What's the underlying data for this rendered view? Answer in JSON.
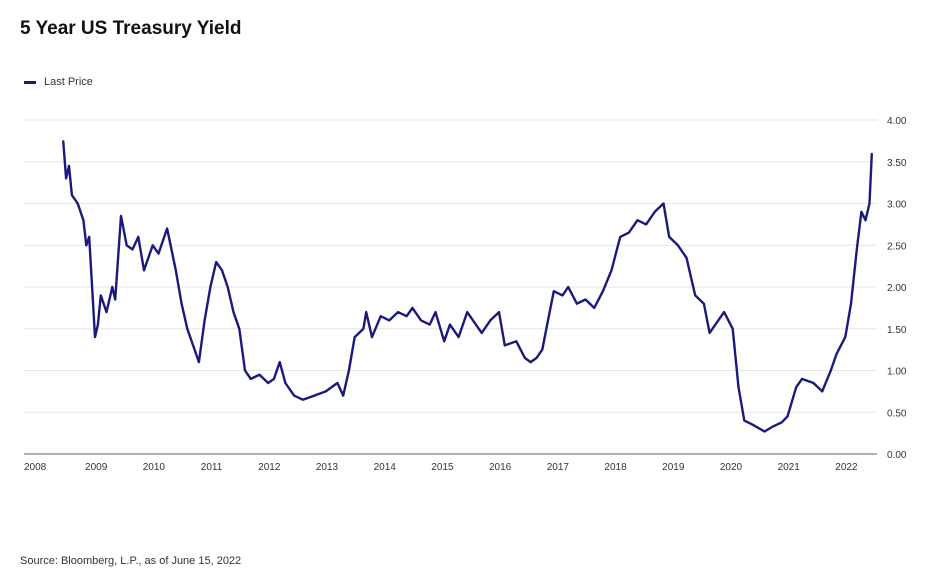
{
  "chart_data": {
    "type": "line",
    "title": "5 Year US Treasury Yield",
    "legend": [
      "Last Price"
    ],
    "legend_position": "top-left",
    "source": "Source: Bloomberg, L.P., as of June 15, 2022",
    "xlabel": "",
    "ylabel": "",
    "ylim": [
      0,
      4
    ],
    "xlim": [
      2007.77,
      2022.55
    ],
    "grid": true,
    "y_ticks": [
      "0.00",
      "0.50",
      "1.00",
      "1.50",
      "2.00",
      "2.50",
      "3.00",
      "3.50",
      "4.00"
    ],
    "x_ticks": [
      "2008",
      "2009",
      "2010",
      "2011",
      "2012",
      "2013",
      "2014",
      "2015",
      "2016",
      "2017",
      "2018",
      "2019",
      "2020",
      "2021",
      "2022"
    ],
    "color": "#1a1a7e",
    "series": [
      {
        "name": "Last Price",
        "x": [
          2008.45,
          2008.5,
          2008.55,
          2008.6,
          2008.7,
          2008.8,
          2008.85,
          2008.9,
          2008.95,
          2009.0,
          2009.05,
          2009.1,
          2009.2,
          2009.3,
          2009.35,
          2009.45,
          2009.55,
          2009.65,
          2009.75,
          2009.85,
          2010.0,
          2010.1,
          2010.25,
          2010.4,
          2010.5,
          2010.6,
          2010.7,
          2010.8,
          2010.9,
          2011.0,
          2011.1,
          2011.2,
          2011.3,
          2011.4,
          2011.5,
          2011.6,
          2011.7,
          2011.85,
          2012.0,
          2012.1,
          2012.2,
          2012.3,
          2012.45,
          2012.6,
          2012.8,
          2013.0,
          2013.2,
          2013.3,
          2013.4,
          2013.5,
          2013.65,
          2013.7,
          2013.8,
          2013.95,
          2014.1,
          2014.25,
          2014.4,
          2014.5,
          2014.65,
          2014.8,
          2014.9,
          2015.05,
          2015.15,
          2015.3,
          2015.45,
          2015.55,
          2015.7,
          2015.85,
          2016.0,
          2016.1,
          2016.3,
          2016.45,
          2016.55,
          2016.65,
          2016.75,
          2016.85,
          2016.95,
          2017.1,
          2017.2,
          2017.35,
          2017.5,
          2017.65,
          2017.8,
          2017.95,
          2018.1,
          2018.25,
          2018.4,
          2018.55,
          2018.7,
          2018.85,
          2018.95,
          2019.1,
          2019.25,
          2019.4,
          2019.55,
          2019.65,
          2019.75,
          2019.9,
          2020.05,
          2020.15,
          2020.25,
          2020.4,
          2020.6,
          2020.75,
          2020.9,
          2021.0,
          2021.15,
          2021.25,
          2021.45,
          2021.6,
          2021.75,
          2021.85,
          2022.0,
          2022.1,
          2022.2,
          2022.28,
          2022.35,
          2022.42,
          2022.46
        ],
        "values": [
          3.75,
          3.3,
          3.45,
          3.1,
          3.0,
          2.8,
          2.5,
          2.6,
          2.0,
          1.4,
          1.55,
          1.9,
          1.7,
          2.0,
          1.85,
          2.85,
          2.5,
          2.45,
          2.6,
          2.2,
          2.5,
          2.4,
          2.7,
          2.2,
          1.8,
          1.5,
          1.3,
          1.1,
          1.6,
          2.0,
          2.3,
          2.2,
          2.0,
          1.7,
          1.5,
          1.0,
          0.9,
          0.95,
          0.85,
          0.9,
          1.1,
          0.85,
          0.7,
          0.65,
          0.7,
          0.75,
          0.85,
          0.7,
          1.0,
          1.4,
          1.5,
          1.7,
          1.4,
          1.65,
          1.6,
          1.7,
          1.65,
          1.75,
          1.6,
          1.55,
          1.7,
          1.35,
          1.55,
          1.4,
          1.7,
          1.6,
          1.45,
          1.6,
          1.7,
          1.3,
          1.35,
          1.15,
          1.1,
          1.15,
          1.25,
          1.6,
          1.95,
          1.9,
          2.0,
          1.8,
          1.85,
          1.75,
          1.95,
          2.2,
          2.6,
          2.65,
          2.8,
          2.75,
          2.9,
          3.0,
          2.6,
          2.5,
          2.35,
          1.9,
          1.8,
          1.45,
          1.55,
          1.7,
          1.5,
          0.8,
          0.4,
          0.35,
          0.27,
          0.33,
          0.38,
          0.45,
          0.8,
          0.9,
          0.85,
          0.75,
          1.0,
          1.2,
          1.4,
          1.8,
          2.45,
          2.9,
          2.8,
          3.0,
          3.6
        ]
      }
    ]
  }
}
